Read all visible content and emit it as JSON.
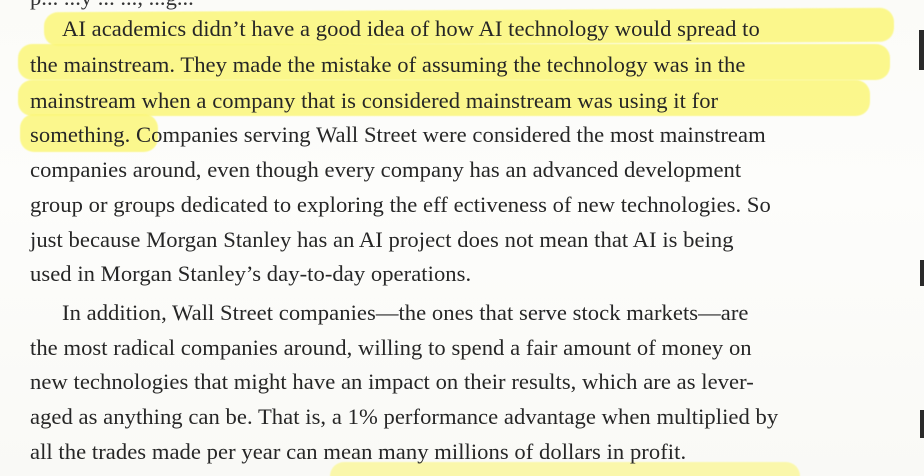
{
  "top_partial": "p... ...y ... ..., ...g...",
  "paragraph1": {
    "lines": [
      "AI academics didn’t have a good idea of how AI technology would spread to",
      "the mainstream. They made the mistake of assuming the technology was in the",
      "mainstream when a company that is considered mainstream was using it for",
      "something. Companies serving Wall Street were considered the most mainstream",
      "companies around, even though every company has an advanced development",
      "group or groups dedicated to exploring the eff ectiveness of new technologies. So",
      "just because Morgan Stanley has an AI project does not mean that AI is being",
      "used in Morgan Stanley’s day-to-day operations."
    ]
  },
  "paragraph2": {
    "lines": [
      "In addition, Wall Street companies—the ones that serve stock markets—are",
      "the most radical companies around, willing to spend a fair amount of money on",
      "new technologies that might have an impact on their results, which are as lever-",
      "aged as anything can be. That is, a 1% performance advantage when multiplied by",
      "all the trades made per year can mean many millions of dollars in profit."
    ]
  },
  "colors": {
    "highlight": "#fbf77a",
    "text": "#262626",
    "paper": "#fdfdfb"
  }
}
